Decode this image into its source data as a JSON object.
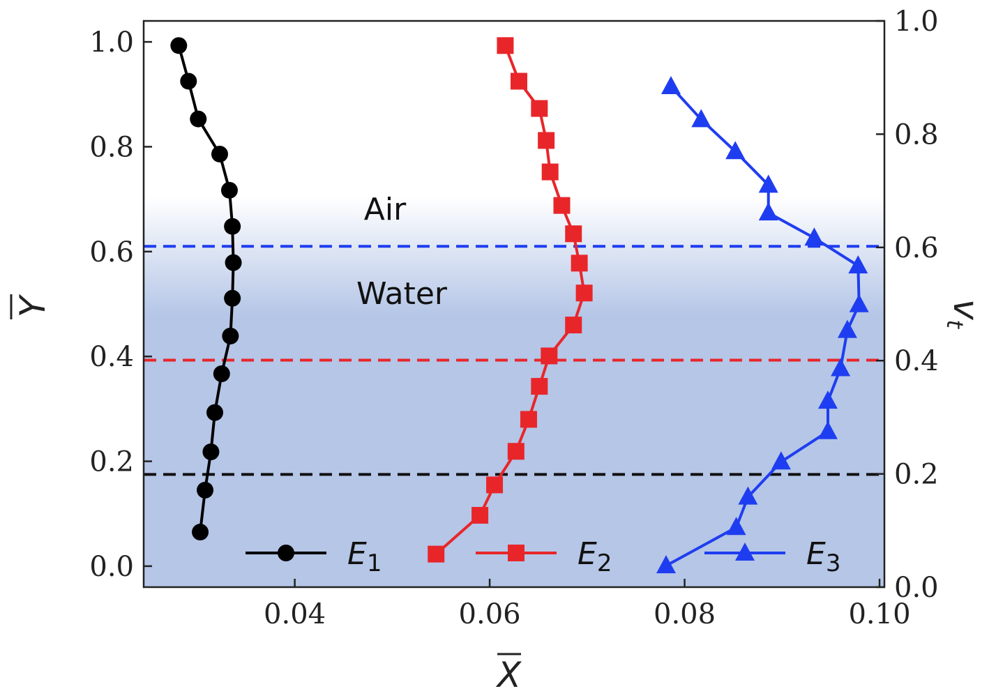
{
  "chart_data": {
    "type": "line",
    "xlabel": "X",
    "ylabel": "Y",
    "y2label": "v",
    "y2label_sub": "t",
    "xlim": [
      0.0245,
      0.1005
    ],
    "ylim": [
      -0.04,
      1.04
    ],
    "y2lim": [
      0.0,
      1.0
    ],
    "x_ticks": [
      0.04,
      0.06,
      0.08,
      0.1
    ],
    "x_tick_labels": [
      "0.04",
      "0.06",
      "0.08",
      "0.10"
    ],
    "y_ticks": [
      0.0,
      0.2,
      0.4,
      0.6,
      0.8,
      1.0
    ],
    "y_tick_labels": [
      "0.0",
      "0.2",
      "0.4",
      "0.6",
      "0.8",
      "1.0"
    ],
    "y2_ticks": [
      0.0,
      0.2,
      0.4,
      0.6,
      0.8,
      1.0
    ],
    "y2_tick_labels": [
      "0.0",
      "0.2",
      "0.4",
      "0.6",
      "0.8",
      "1.0"
    ],
    "grid": false,
    "legend_position": "bottom",
    "regions": [
      {
        "label": "Air",
        "color": "#ffffff"
      },
      {
        "label": "Water",
        "color": "#b5c6e7"
      }
    ],
    "reference_lines_y": [
      {
        "y": 0.61,
        "color": "#1f3df0"
      },
      {
        "y": 0.393,
        "color": "#e8262a"
      },
      {
        "y": 0.175,
        "color": "#111111"
      }
    ],
    "series": [
      {
        "name": "E",
        "name_sub": "1",
        "color": "#000000",
        "marker": "circle",
        "points": [
          [
            0.0281,
            0.993
          ],
          [
            0.0291,
            0.925
          ],
          [
            0.0301,
            0.853
          ],
          [
            0.0323,
            0.786
          ],
          [
            0.0333,
            0.717
          ],
          [
            0.0336,
            0.648
          ],
          [
            0.0337,
            0.579
          ],
          [
            0.0336,
            0.511
          ],
          [
            0.0334,
            0.439
          ],
          [
            0.0325,
            0.367
          ],
          [
            0.0318,
            0.293
          ],
          [
            0.0314,
            0.218
          ],
          [
            0.0308,
            0.145
          ],
          [
            0.0303,
            0.065
          ]
        ]
      },
      {
        "name": "E",
        "name_sub": "2",
        "color": "#e8262a",
        "marker": "square",
        "points": [
          [
            0.0616,
            0.993
          ],
          [
            0.063,
            0.925
          ],
          [
            0.0651,
            0.873
          ],
          [
            0.0658,
            0.812
          ],
          [
            0.0662,
            0.752
          ],
          [
            0.0674,
            0.688
          ],
          [
            0.0686,
            0.634
          ],
          [
            0.0692,
            0.578
          ],
          [
            0.0697,
            0.521
          ],
          [
            0.0686,
            0.46
          ],
          [
            0.0661,
            0.401
          ],
          [
            0.0651,
            0.343
          ],
          [
            0.064,
            0.28
          ],
          [
            0.0627,
            0.219
          ],
          [
            0.0605,
            0.155
          ],
          [
            0.059,
            0.097
          ],
          [
            0.0545,
            0.023
          ]
        ]
      },
      {
        "name": "E",
        "name_sub": "3",
        "color": "#1f3df0",
        "marker": "triangle",
        "points": [
          [
            0.0786,
            0.915
          ],
          [
            0.0817,
            0.852
          ],
          [
            0.0852,
            0.791
          ],
          [
            0.0886,
            0.727
          ],
          [
            0.0886,
            0.674
          ],
          [
            0.0933,
            0.626
          ],
          [
            0.0978,
            0.573
          ],
          [
            0.0979,
            0.499
          ],
          [
            0.0967,
            0.45
          ],
          [
            0.096,
            0.377
          ],
          [
            0.0947,
            0.315
          ],
          [
            0.0947,
            0.257
          ],
          [
            0.0899,
            0.199
          ],
          [
            0.0865,
            0.132
          ],
          [
            0.0853,
            0.074
          ],
          [
            0.0781,
            0.001
          ]
        ]
      }
    ]
  }
}
